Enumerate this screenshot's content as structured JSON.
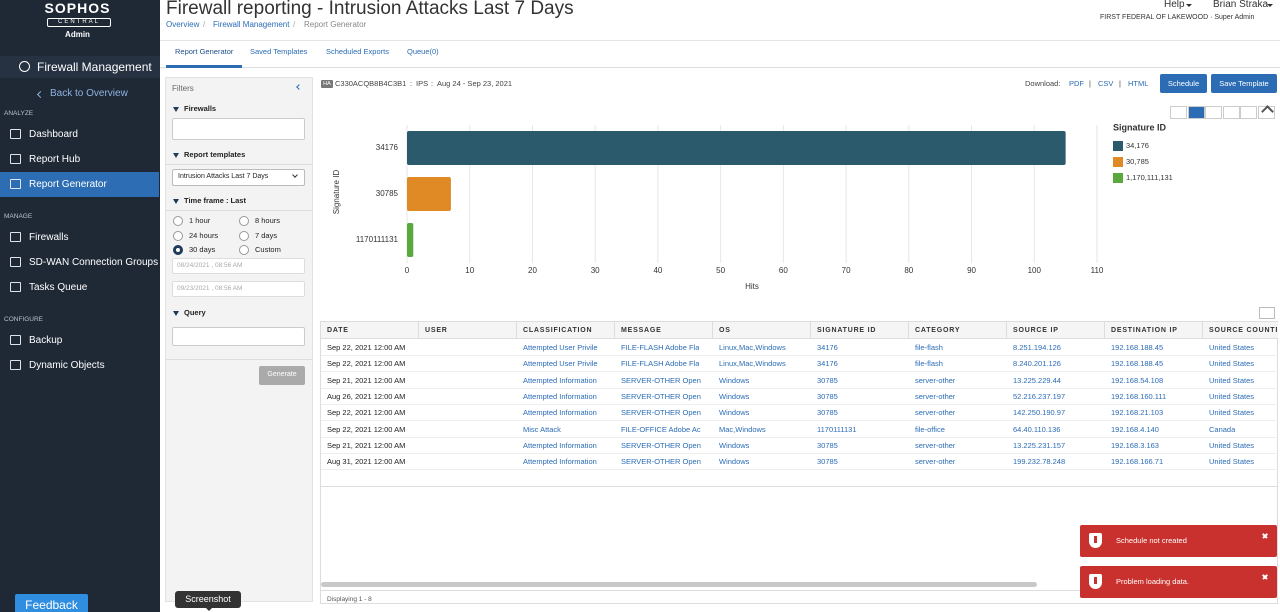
{
  "sidebar": {
    "brand": "SOPHOS",
    "brand_sub": "CENTRAL",
    "brand_role": "Admin",
    "product": "Firewall Management",
    "back": "Back to Overview",
    "sections": [
      {
        "title": "ANALYZE",
        "items": [
          "Dashboard",
          "Report Hub",
          "Report Generator"
        ]
      },
      {
        "title": "MANAGE",
        "items": [
          "Firewalls",
          "SD-WAN Connection Groups",
          "Tasks Queue"
        ]
      },
      {
        "title": "CONFIGURE",
        "items": [
          "Backup",
          "Dynamic Objects"
        ]
      }
    ],
    "feedback": "Feedback"
  },
  "header": {
    "title": "Firewall reporting - Intrusion Attacks Last 7 Days",
    "breadcrumbs": [
      "Overview",
      "Firewall Management",
      "Report Generator"
    ],
    "breadcrumb_separator": "/",
    "help": "Help",
    "user": "Brian Straka",
    "org": "FIRST FEDERAL OF LAKEWOOD · Super Admin"
  },
  "tabs": [
    "Report Generator",
    "Saved Templates",
    "Scheduled Exports",
    "Queue(0)"
  ],
  "filters": {
    "title": "Filters",
    "firewalls": "Firewalls",
    "report_templates": "Report templates",
    "template": "Intrusion Attacks Last 7 Days",
    "time_frame": "Time frame : Last",
    "options": [
      "1 hour",
      "8 hours",
      "24 hours",
      "7 days",
      "30 days",
      "Custom"
    ],
    "selected_index": 4,
    "from": "08/24/2021 , 08:56 AM",
    "to": "09/23/2021 , 08:56 AM",
    "query": "Query",
    "generate": "Generate"
  },
  "report": {
    "badge": "HA",
    "device": "C330ACQB8B4C3B1",
    "separator": ":",
    "type": "IPS",
    "range": "Aug 24 - Sep 23, 2021",
    "download_label": "Download:",
    "downloads": [
      "PDF",
      "CSV",
      "HTML"
    ],
    "download_separator": "|",
    "buttons": [
      "Schedule",
      "Save Template"
    ]
  },
  "chart_data": {
    "type": "bar",
    "orientation": "horizontal",
    "ylabel": "Signature ID",
    "xlabel": "Hits",
    "categories": [
      "34176",
      "30785",
      "1170111131"
    ],
    "values": [
      105,
      7,
      1
    ],
    "colors": [
      "#2b5a6d",
      "#e08a26",
      "#5aa83e"
    ],
    "xlim": [
      0,
      110
    ],
    "xticks": [
      0,
      10,
      20,
      30,
      40,
      50,
      60,
      70,
      80,
      90,
      100,
      110
    ],
    "grid": true,
    "legend": {
      "title": "Signature ID",
      "labels": [
        "34,176",
        "30,785",
        "1,170,111,131"
      ]
    }
  },
  "table": {
    "columns": [
      "DATE",
      "USER",
      "CLASSIFICATION",
      "MESSAGE",
      "OS",
      "SIGNATURE ID",
      "CATEGORY",
      "SOURCE IP",
      "DESTINATION IP",
      "SOURCE COUNTR"
    ],
    "rows": [
      [
        "Sep 22, 2021 12:00 AM",
        null,
        "Attempted User Privile",
        "FILE-FLASH Adobe Fla",
        "Linux,Mac,Windows",
        "34176",
        "file-flash",
        "8.251.194.126",
        "192.168.188.45",
        "United States"
      ],
      [
        "Sep 22, 2021 12:00 AM",
        null,
        "Attempted User Privile",
        "FILE-FLASH Adobe Fla",
        "Linux,Mac,Windows",
        "34176",
        "file-flash",
        "8.240.201.126",
        "192.168.188.45",
        "United States"
      ],
      [
        "Sep 21, 2021 12:00 AM",
        null,
        "Attempted Information",
        "SERVER-OTHER Open",
        "Windows",
        "30785",
        "server-other",
        "13.225.229.44",
        "192.168.54.108",
        "United States"
      ],
      [
        "Aug 26, 2021 12:00 AM",
        null,
        "Attempted Information",
        "SERVER-OTHER Open",
        "Windows",
        "30785",
        "server-other",
        "52.216.237.197",
        "192.168.160.111",
        "United States"
      ],
      [
        "Sep 22, 2021 12:00 AM",
        null,
        "Attempted Information",
        "SERVER-OTHER Open",
        "Windows",
        "30785",
        "server-other",
        "142.250.190.97",
        "192.168.21.103",
        "United States"
      ],
      [
        "Sep 22, 2021 12:00 AM",
        null,
        "Misc Attack",
        "FILE-OFFICE Adobe Ac",
        "Mac,Windows",
        "1170111131",
        "file-office",
        "64.40.110.136",
        "192.168.4.140",
        "Canada"
      ],
      [
        "Sep 21, 2021 12:00 AM",
        null,
        "Attempted Information",
        "SERVER-OTHER Open",
        "Windows",
        "30785",
        "server-other",
        "13.225.231.157",
        "192.168.3.163",
        "United States"
      ],
      [
        "Aug 31, 2021 12:00 AM",
        null,
        "Attempted Information",
        "SERVER-OTHER Open",
        "Windows",
        "30785",
        "server-other",
        "199.232.78.248",
        "192.168.166.71",
        "United States"
      ]
    ],
    "footer": "Displaying 1 - 8"
  },
  "toasts": [
    "Schedule not created",
    "Problem loading data."
  ],
  "tooltip": "Screenshot"
}
